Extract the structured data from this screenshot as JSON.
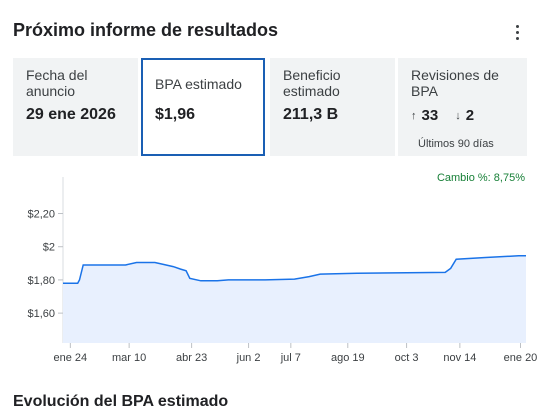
{
  "header": {
    "title": "Próximo informe de resultados"
  },
  "cards": {
    "announce": {
      "label": "Fecha del anuncio",
      "value": "29 ene 2026"
    },
    "eps": {
      "label": "BPA estimado",
      "value": "$1,96"
    },
    "profit": {
      "label": "Beneficio estimado",
      "value": "211,3 B"
    },
    "revisions": {
      "label": "Revisiones de BPA",
      "up": "33",
      "down": "2",
      "note": "Últimos 90 días",
      "up_icon": "arrow-up-icon",
      "down_icon": "arrow-down-icon"
    }
  },
  "chart_header": {
    "label": "Cambio %:",
    "value": "8,75%"
  },
  "bottom": {
    "partial_heading": "Evolución del BPA estimado"
  },
  "colors": {
    "line": "#1a73e8",
    "fill": "#e8f0fe",
    "selected_border": "#1a5fb4",
    "change": "#188038"
  },
  "chart_data": {
    "type": "area",
    "ylim": [
      1.42,
      2.42
    ],
    "yticks": [
      {
        "v": 1.6,
        "label": "$1,60"
      },
      {
        "v": 1.8,
        "label": "$1,80"
      },
      {
        "v": 2.0,
        "label": "$2"
      },
      {
        "v": 2.2,
        "label": "$2,20"
      }
    ],
    "xlim": [
      0,
      16
    ],
    "xticks": [
      {
        "x": 0.2,
        "label": "ene 24"
      },
      {
        "x": 1.8,
        "label": "mar 10"
      },
      {
        "x": 3.5,
        "label": "abr 23"
      },
      {
        "x": 5.05,
        "label": "jun 2"
      },
      {
        "x": 6.2,
        "label": "jul 7"
      },
      {
        "x": 7.75,
        "label": "ago 19"
      },
      {
        "x": 9.35,
        "label": "oct 3"
      },
      {
        "x": 10.8,
        "label": "nov 14"
      },
      {
        "x": 12.45,
        "label": "ene 20"
      }
    ],
    "series": [
      {
        "points": [
          [
            0.0,
            1.78
          ],
          [
            0.4,
            1.78
          ],
          [
            0.45,
            1.8
          ],
          [
            0.55,
            1.89
          ],
          [
            1.7,
            1.89
          ],
          [
            2.0,
            1.905
          ],
          [
            2.5,
            1.905
          ],
          [
            2.7,
            1.895
          ],
          [
            3.0,
            1.88
          ],
          [
            3.2,
            1.865
          ],
          [
            3.35,
            1.855
          ],
          [
            3.45,
            1.81
          ],
          [
            3.75,
            1.795
          ],
          [
            4.2,
            1.795
          ],
          [
            4.5,
            1.8
          ],
          [
            5.5,
            1.8
          ],
          [
            6.3,
            1.805
          ],
          [
            6.7,
            1.82
          ],
          [
            7.0,
            1.835
          ],
          [
            8.0,
            1.84
          ],
          [
            10.4,
            1.845
          ],
          [
            10.55,
            1.87
          ],
          [
            10.7,
            1.925
          ],
          [
            11.5,
            1.935
          ],
          [
            12.4,
            1.945
          ],
          [
            12.6,
            1.945
          ]
        ]
      }
    ]
  }
}
